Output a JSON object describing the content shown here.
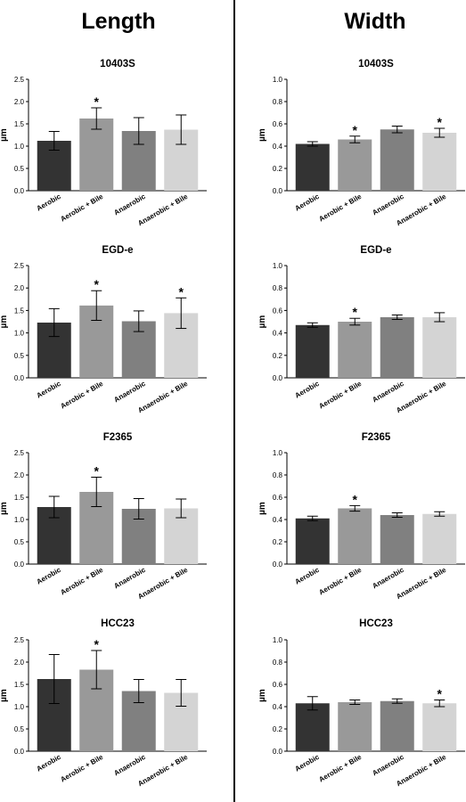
{
  "columns": {
    "left_title": "Length",
    "right_title": "Width"
  },
  "chart_data": [
    {
      "type": "bar",
      "title": "10403S",
      "ylabel": "µm",
      "ylim": [
        0,
        2.5
      ],
      "yticks": [
        "0.0",
        "0.5",
        "1.0",
        "1.5",
        "2.0",
        "2.5"
      ],
      "categories": [
        "Aerobic",
        "Aerobic + Bile",
        "Anaerobic",
        "Anaerobic + Bile"
      ],
      "values": [
        1.12,
        1.62,
        1.34,
        1.37
      ],
      "errors": [
        0.21,
        0.24,
        0.3,
        0.33
      ],
      "significant": [
        false,
        true,
        false,
        false
      ],
      "colors": [
        "#333333",
        "#999999",
        "#808080",
        "#d4d4d4"
      ],
      "annotation": "*"
    },
    {
      "type": "bar",
      "title": "10403S",
      "ylabel": "µm",
      "ylim": [
        0,
        1.0
      ],
      "yticks": [
        "0.0",
        "0.2",
        "0.4",
        "0.6",
        "0.8",
        "1.0"
      ],
      "categories": [
        "Aerobic",
        "Aerobic + Bile",
        "Anaerobic",
        "Anaerobic + Bile"
      ],
      "values": [
        0.42,
        0.46,
        0.55,
        0.52
      ],
      "errors": [
        0.02,
        0.03,
        0.03,
        0.04
      ],
      "significant": [
        false,
        true,
        false,
        true
      ],
      "colors": [
        "#333333",
        "#999999",
        "#808080",
        "#d4d4d4"
      ],
      "annotation": "*"
    },
    {
      "type": "bar",
      "title": "EGD-e",
      "ylabel": "µm",
      "ylim": [
        0,
        2.5
      ],
      "yticks": [
        "0.0",
        "0.5",
        "1.0",
        "1.5",
        "2.0",
        "2.5"
      ],
      "categories": [
        "Aerobic",
        "Aerobic + Bile",
        "Anaerobic",
        "Anaerobic + Bile"
      ],
      "values": [
        1.23,
        1.61,
        1.26,
        1.44
      ],
      "errors": [
        0.31,
        0.33,
        0.23,
        0.34
      ],
      "significant": [
        false,
        true,
        false,
        true
      ],
      "colors": [
        "#333333",
        "#999999",
        "#808080",
        "#d4d4d4"
      ],
      "annotation": "*"
    },
    {
      "type": "bar",
      "title": "EGD-e",
      "ylabel": "µm",
      "ylim": [
        0,
        1.0
      ],
      "yticks": [
        "0.0",
        "0.2",
        "0.4",
        "0.6",
        "0.8",
        "1.0"
      ],
      "categories": [
        "Aerobic",
        "Aerobic + Bile",
        "Anaerobic",
        "Anaerobic + Bile"
      ],
      "values": [
        0.47,
        0.5,
        0.54,
        0.54
      ],
      "errors": [
        0.02,
        0.03,
        0.02,
        0.04
      ],
      "significant": [
        false,
        true,
        false,
        false
      ],
      "colors": [
        "#333333",
        "#999999",
        "#808080",
        "#d4d4d4"
      ],
      "annotation": "*"
    },
    {
      "type": "bar",
      "title": "F2365",
      "ylabel": "µm",
      "ylim": [
        0,
        2.5
      ],
      "yticks": [
        "0.0",
        "0.5",
        "1.0",
        "1.5",
        "2.0",
        "2.5"
      ],
      "categories": [
        "Aerobic",
        "Aerobic + Bile",
        "Anaerobic",
        "Anaerobic + Bile"
      ],
      "values": [
        1.28,
        1.62,
        1.24,
        1.25
      ],
      "errors": [
        0.24,
        0.33,
        0.23,
        0.21
      ],
      "significant": [
        false,
        true,
        false,
        false
      ],
      "colors": [
        "#333333",
        "#999999",
        "#808080",
        "#d4d4d4"
      ],
      "annotation": "*"
    },
    {
      "type": "bar",
      "title": "F2365",
      "ylabel": "µm",
      "ylim": [
        0,
        1.0
      ],
      "yticks": [
        "0.0",
        "0.2",
        "0.4",
        "0.6",
        "0.8",
        "1.0"
      ],
      "categories": [
        "Aerobic",
        "Aerobic + Bile",
        "Anaerobic",
        "Anaerobic + Bile"
      ],
      "values": [
        0.41,
        0.5,
        0.44,
        0.45
      ],
      "errors": [
        0.02,
        0.025,
        0.02,
        0.02
      ],
      "significant": [
        false,
        true,
        false,
        false
      ],
      "colors": [
        "#333333",
        "#999999",
        "#808080",
        "#d4d4d4"
      ],
      "annotation": "*"
    },
    {
      "type": "bar",
      "title": "HCC23",
      "ylabel": "µm",
      "ylim": [
        0,
        2.5
      ],
      "yticks": [
        "0.0",
        "0.5",
        "1.0",
        "1.5",
        "2.0",
        "2.5"
      ],
      "categories": [
        "Aerobic",
        "Aerobic + Bile",
        "Anaerobic",
        "Anaerobic + Bile"
      ],
      "values": [
        1.62,
        1.83,
        1.35,
        1.31
      ],
      "errors": [
        0.55,
        0.43,
        0.26,
        0.3
      ],
      "significant": [
        false,
        true,
        false,
        false
      ],
      "colors": [
        "#333333",
        "#999999",
        "#808080",
        "#d4d4d4"
      ],
      "annotation": "*"
    },
    {
      "type": "bar",
      "title": "HCC23",
      "ylabel": "µm",
      "ylim": [
        0,
        1.0
      ],
      "yticks": [
        "0.0",
        "0.2",
        "0.4",
        "0.6",
        "0.8",
        "1.0"
      ],
      "categories": [
        "Aerobic",
        "Aerobic + Bile",
        "Anaerobic",
        "Anaerobic + Bile"
      ],
      "values": [
        0.43,
        0.44,
        0.45,
        0.43
      ],
      "errors": [
        0.06,
        0.02,
        0.02,
        0.03
      ],
      "significant": [
        false,
        false,
        false,
        true
      ],
      "colors": [
        "#333333",
        "#999999",
        "#808080",
        "#d4d4d4"
      ],
      "annotation": "*"
    }
  ]
}
